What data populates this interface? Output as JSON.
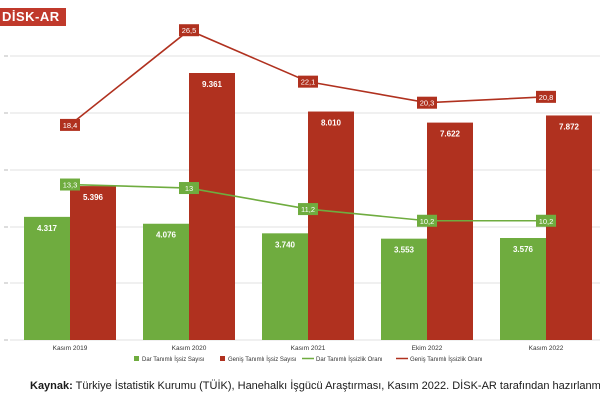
{
  "logo": {
    "text": "DİSK-AR"
  },
  "chart_data": {
    "type": "bar+line",
    "categories": [
      "Kasım 2019",
      "Kasım 2020",
      "Kasım 2021",
      "Ekim 2022",
      "Kasım 2022"
    ],
    "bar_series": [
      {
        "name": "Dar Tanımlı İşsiz Sayısı",
        "color": "#6fac3f",
        "values": [
          4.317,
          4.076,
          3.74,
          3.553,
          3.576
        ],
        "labels": [
          "4.317",
          "4.076",
          "3.740",
          "3.553",
          "3.576"
        ]
      },
      {
        "name": "Geniş Tanımlı İşsiz Sayısı",
        "color": "#b0311f",
        "values": [
          5.396,
          9.361,
          8.01,
          7.622,
          7.872
        ],
        "labels": [
          "5.396",
          "9.361",
          "8.010",
          "7.622",
          "7.872"
        ]
      }
    ],
    "line_series": [
      {
        "name": "Dar Tanımlı İşsizlik Oranı",
        "color": "#6fac3f",
        "values": [
          13.3,
          13.0,
          11.2,
          10.2,
          10.2
        ],
        "labels": [
          "13,3",
          "13",
          "11,2",
          "10,2",
          "10,2"
        ]
      },
      {
        "name": "Geniş Tanımlı İşsizlik Oranı",
        "color": "#b0311f",
        "values": [
          18.4,
          26.5,
          22.1,
          20.3,
          20.8
        ],
        "labels": [
          "18,4",
          "26,5",
          "22,1",
          "20,3",
          "20,8"
        ]
      }
    ],
    "legend_position": "bottom",
    "grid": true
  },
  "source": {
    "label": "Kaynak:",
    "text": " Türkiye İstatistik Kurumu (TÜİK), Hanehalkı İşgücü Araştırması, Kasım 2022. DİSK-AR tarafından hazırlanmıştır."
  }
}
